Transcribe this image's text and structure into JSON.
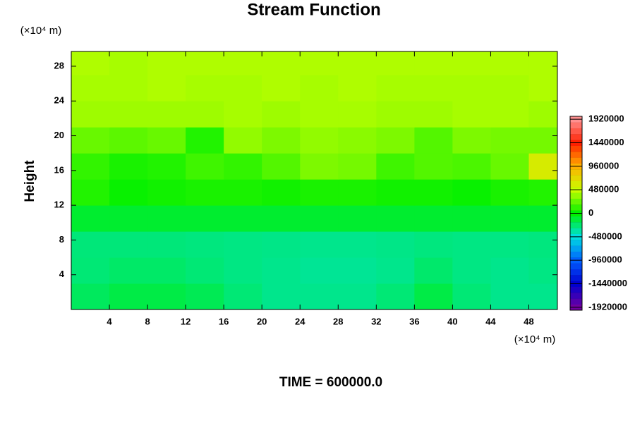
{
  "chart_data": {
    "type": "contour",
    "title": "Stream Function",
    "ylabel": "Height",
    "x_unit": "(×10⁴ m)",
    "y_unit": "(×10⁴ m)",
    "annotation": "TIME = 600000.0",
    "x": [
      2,
      6,
      10,
      14,
      18,
      22,
      26,
      30,
      34,
      38,
      42,
      46,
      50
    ],
    "y": [
      1.5,
      4.5,
      7.5,
      10.5,
      13.5,
      16.5,
      19.5,
      22.5,
      25.5,
      28.5
    ],
    "z": [
      [
        -200000,
        -150000,
        -150000,
        -180000,
        -250000,
        -300000,
        -300000,
        -300000,
        -250000,
        -150000,
        -250000,
        -300000,
        -300000
      ],
      [
        -250000,
        -220000,
        -220000,
        -250000,
        -280000,
        -300000,
        -320000,
        -320000,
        -300000,
        -230000,
        -280000,
        -300000,
        -280000
      ],
      [
        -260000,
        -260000,
        -260000,
        -270000,
        -280000,
        -290000,
        -300000,
        -300000,
        -290000,
        -270000,
        -280000,
        -280000,
        -270000
      ],
      [
        -100000,
        -100000,
        -100000,
        -100000,
        -100000,
        -100000,
        -100000,
        -100000,
        -100000,
        -100000,
        -100000,
        -100000,
        -100000
      ],
      [
        80000,
        20000,
        40000,
        60000,
        60000,
        40000,
        60000,
        60000,
        40000,
        40000,
        20000,
        60000,
        80000
      ],
      [
        120000,
        60000,
        80000,
        150000,
        120000,
        200000,
        300000,
        280000,
        150000,
        200000,
        180000,
        250000,
        600000
      ],
      [
        250000,
        220000,
        250000,
        80000,
        350000,
        300000,
        350000,
        330000,
        300000,
        200000,
        300000,
        280000,
        280000
      ],
      [
        380000,
        380000,
        380000,
        380000,
        400000,
        380000,
        400000,
        400000,
        380000,
        380000,
        400000,
        400000,
        380000
      ],
      [
        400000,
        400000,
        420000,
        400000,
        400000,
        420000,
        400000,
        420000,
        400000,
        400000,
        400000,
        400000,
        420000
      ],
      [
        420000,
        400000,
        420000,
        420000,
        420000,
        420000,
        420000,
        420000,
        420000,
        420000,
        420000,
        420000,
        420000
      ]
    ],
    "xlim": [
      0,
      51
    ],
    "ylim": [
      0,
      29.7
    ],
    "xticks": [
      4,
      8,
      12,
      16,
      20,
      24,
      28,
      32,
      36,
      40,
      44,
      48
    ],
    "yticks": [
      4,
      8,
      12,
      16,
      20,
      24,
      28
    ],
    "colorbar_lim": [
      -1980000,
      1980000
    ],
    "colorbar_ticks": [
      1920000,
      1440000,
      960000,
      480000,
      0,
      -480000,
      -960000,
      -1440000,
      -1920000
    ],
    "colormap": [
      "#7000a0",
      "#0000d0",
      "#0060ff",
      "#00e0e0",
      "#00f000",
      "#c8ff00",
      "#ffb000",
      "#ff2000",
      "#ff9090"
    ],
    "colormap_range": [
      -1920000,
      1920000
    ]
  }
}
